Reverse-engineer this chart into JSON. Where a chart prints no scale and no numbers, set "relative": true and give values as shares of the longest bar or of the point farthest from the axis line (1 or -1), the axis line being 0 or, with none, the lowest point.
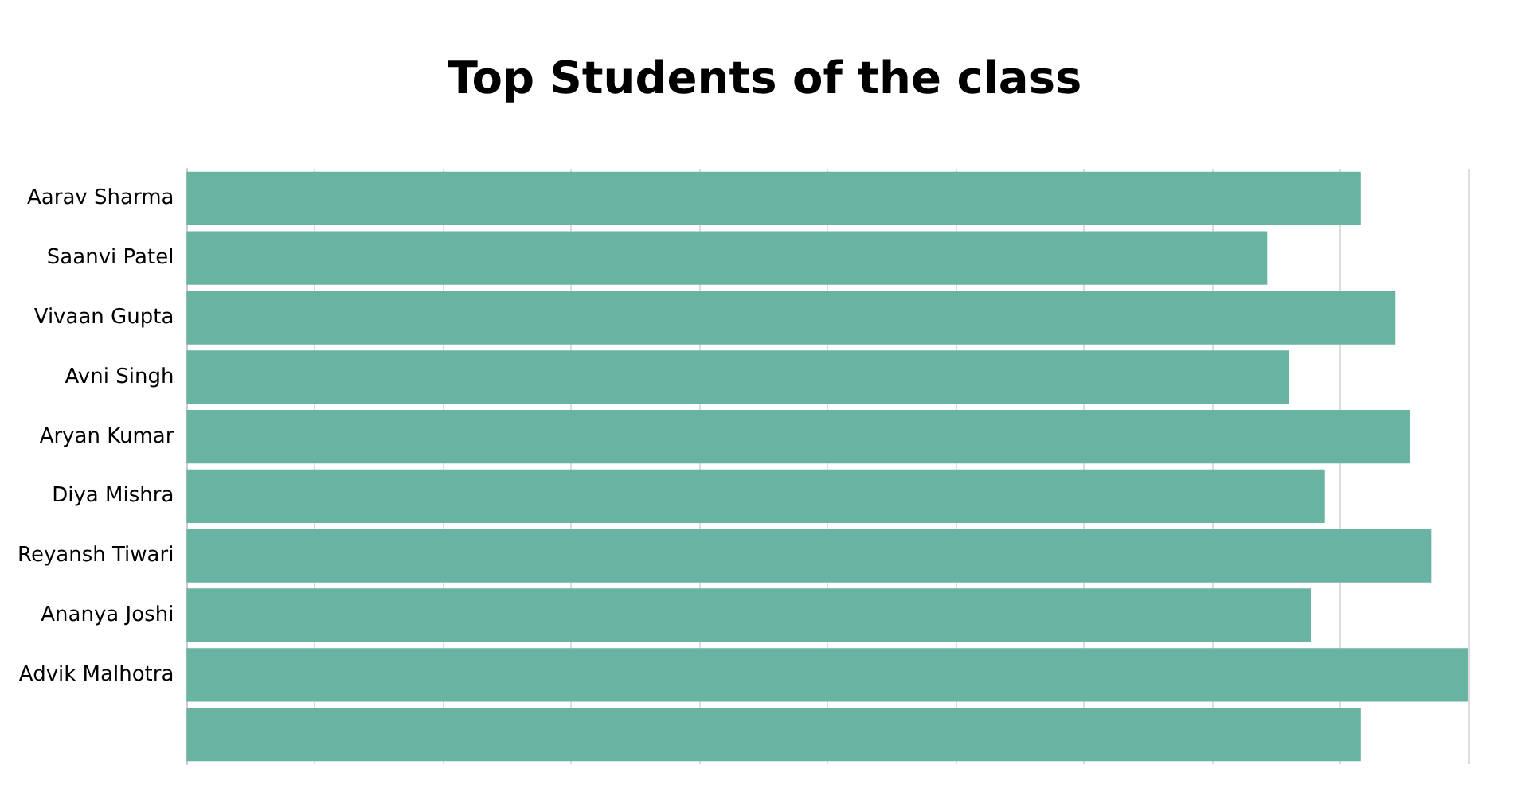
{
  "chart_data": {
    "type": "bar",
    "title": "Top Students of the class",
    "orientation": "horizontal",
    "relative": true,
    "grid": "x",
    "color": "#69b3a2",
    "categories": [
      "Aarav Sharma",
      "Saanvi Patel",
      "Vivaan Gupta",
      "Avni Singh",
      "Aryan Kumar",
      "Diya Mishra",
      "Reyansh Tiwari",
      "Ananya Joshi",
      "Advik Malhotra",
      null
    ],
    "values": [
      0.916,
      0.843,
      0.943,
      0.86,
      0.954,
      0.888,
      0.971,
      0.877,
      1,
      0.916
    ]
  }
}
